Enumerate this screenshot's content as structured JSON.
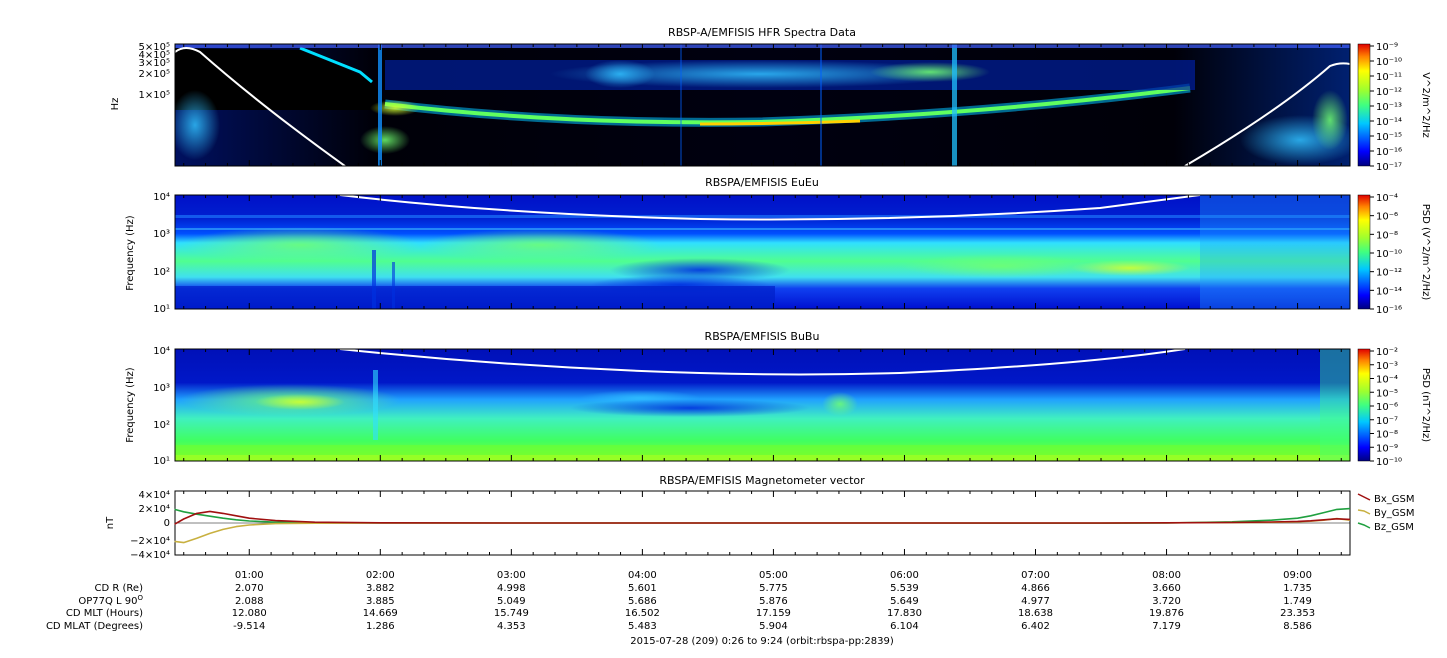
{
  "time_ticks": [
    "01:00",
    "02:00",
    "03:00",
    "04:00",
    "05:00",
    "06:00",
    "07:00",
    "08:00",
    "09:00"
  ],
  "time_range_hours": [
    0.4333,
    9.4
  ],
  "ephemeris": {
    "rows": [
      {
        "label": "CD R (Re)",
        "values": [
          "2.070",
          "3.882",
          "4.998",
          "5.601",
          "5.775",
          "5.539",
          "4.866",
          "3.660",
          "1.735"
        ]
      },
      {
        "label": "OP77Q L 90",
        "label_sup": "O",
        "values": [
          "2.088",
          "3.885",
          "5.049",
          "5.686",
          "5.876",
          "5.649",
          "4.977",
          "3.720",
          "1.749"
        ]
      },
      {
        "label": "CD MLT (Hours)",
        "values": [
          "12.080",
          "14.669",
          "15.749",
          "16.502",
          "17.159",
          "17.830",
          "18.638",
          "19.876",
          "23.353"
        ]
      },
      {
        "label": "CD MLAT (Degrees)",
        "values": [
          "-9.514",
          "1.286",
          "4.353",
          "5.483",
          "5.904",
          "6.104",
          "6.402",
          "7.179",
          "8.586"
        ]
      }
    ]
  },
  "footer": "2015-07-28 (209) 0:26 to 9:24 (orbit:rbspa-pp:2839)",
  "colors": {
    "black_bg": "#000000",
    "spec_bg": "#0000aa",
    "gyro_line": "#ffffff",
    "bx": "#a01010",
    "by": "#c8b040",
    "bz": "#20a040"
  },
  "chart_data": [
    {
      "type": "heatmap",
      "title": "RBSP-A/EMFISIS  HFR Spectra Data",
      "ylabel": "Hz",
      "ylog": true,
      "y_ticks": [
        "1×10⁵",
        "2×10⁵",
        "3×10⁵",
        "4×10⁵",
        "5×10⁵"
      ],
      "colorbar": {
        "label": "V^2/m^2/Hz",
        "ticks": [
          "10⁻⁹",
          "10⁻¹⁰",
          "10⁻¹¹",
          "10⁻¹²",
          "10⁻¹³",
          "10⁻¹⁴",
          "10⁻¹⁵",
          "10⁻¹⁶",
          "10⁻¹⁷"
        ]
      }
    },
    {
      "type": "heatmap",
      "title": "RBSPA/EMFISIS  EuEu",
      "ylabel": "Frequency (Hz)",
      "ylog": true,
      "ylim": [
        10,
        10000
      ],
      "y_ticks": [
        "10⁴",
        "10³",
        "10²",
        "10¹"
      ],
      "colorbar": {
        "label": "PSD (V^2/m^2/Hz)",
        "ticks": [
          "10⁻⁴",
          "10⁻⁶",
          "10⁻⁸",
          "10⁻¹⁰",
          "10⁻¹²",
          "10⁻¹⁴",
          "10⁻¹⁶"
        ]
      }
    },
    {
      "type": "heatmap",
      "title": "RBSPA/EMFISIS  BuBu",
      "ylabel": "Frequency (Hz)",
      "ylog": true,
      "ylim": [
        10,
        10000
      ],
      "y_ticks": [
        "10⁴",
        "10³",
        "10²",
        "10¹"
      ],
      "colorbar": {
        "label": "PSD (nT^2/Hz)",
        "ticks": [
          "10⁻²",
          "10⁻³",
          "10⁻⁴",
          "10⁻⁵",
          "10⁻⁶",
          "10⁻⁷",
          "10⁻⁸",
          "10⁻⁹",
          "10⁻¹⁰"
        ]
      }
    },
    {
      "type": "line",
      "title": "RBSPA/EMFISIS  Magnetometer vector",
      "ylabel": "nT",
      "ylim": [
        -40000,
        40000
      ],
      "y_ticks": [
        "4×10⁴",
        "2×10⁴",
        "0",
        "−2×10⁴",
        "−4×10⁴"
      ],
      "x_hours": [
        0.43,
        0.5,
        0.6,
        0.7,
        0.8,
        0.9,
        1.0,
        1.2,
        1.5,
        2.0,
        3.0,
        4.0,
        5.0,
        6.0,
        7.0,
        7.5,
        8.0,
        8.5,
        8.8,
        9.0,
        9.1,
        9.2,
        9.3,
        9.4
      ],
      "series": [
        {
          "name": "Bx_GSM",
          "values": [
            -1500,
            5000,
            12000,
            14500,
            12000,
            9000,
            6000,
            3000,
            1000,
            200,
            0,
            0,
            0,
            0,
            0,
            0,
            200,
            600,
            1200,
            2000,
            2800,
            4000,
            5200,
            4500
          ]
        },
        {
          "name": "By_GSM",
          "values": [
            -23000,
            -24500,
            -19000,
            -13000,
            -8000,
            -4500,
            -2500,
            -800,
            -200,
            0,
            0,
            0,
            0,
            0,
            0,
            0,
            200,
            500,
            900,
            1500,
            2200,
            3500,
            5500,
            3500
          ]
        },
        {
          "name": "Bz_GSM",
          "values": [
            17000,
            14000,
            11000,
            8500,
            6000,
            4000,
            2500,
            1000,
            300,
            100,
            0,
            0,
            0,
            0,
            -300,
            -300,
            0,
            1500,
            3500,
            6000,
            9000,
            13000,
            17000,
            18000
          ]
        }
      ]
    }
  ]
}
